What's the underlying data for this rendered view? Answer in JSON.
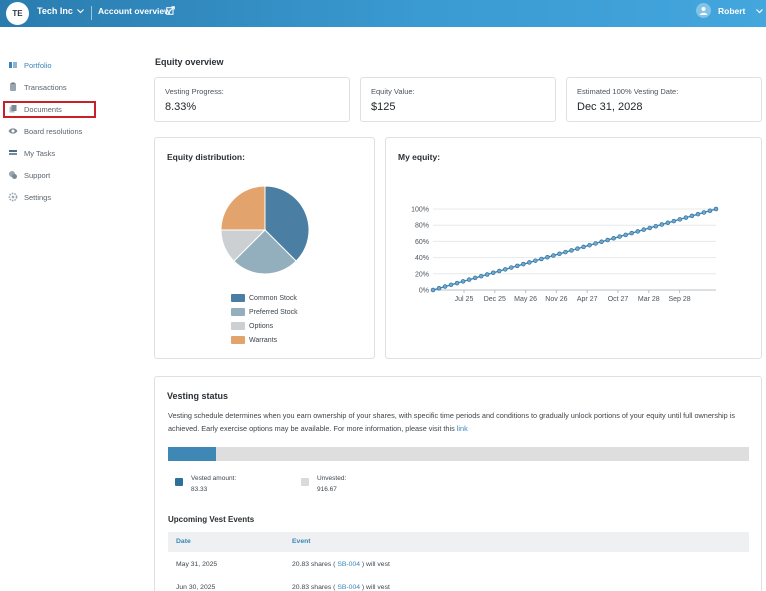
{
  "header": {
    "org_initials": "TE",
    "org_name": "Tech Inc",
    "account_link": "Account overview",
    "user_name": "Robert"
  },
  "sidebar": {
    "items": [
      {
        "label": "Portfolio",
        "icon": "portfolio-icon",
        "active": true
      },
      {
        "label": "Transactions",
        "icon": "clipboard-icon"
      },
      {
        "label": "Documents",
        "icon": "documents-icon"
      },
      {
        "label": "Board resolutions",
        "icon": "eye-icon"
      },
      {
        "label": "My Tasks",
        "icon": "tasks-icon"
      },
      {
        "label": "Support",
        "icon": "support-icon"
      },
      {
        "label": "Settings",
        "icon": "gear-icon"
      }
    ]
  },
  "overview": {
    "title": "Equity overview",
    "stats": [
      {
        "label": "Vesting Progress:",
        "value": "8.33%"
      },
      {
        "label": "Equity Value:",
        "value": "$125"
      },
      {
        "label": "Estimated 100% Vesting Date:",
        "value": "Dec 31, 2028"
      }
    ]
  },
  "distribution": {
    "title": "Equity distribution:",
    "legend": [
      "Common Stock",
      "Preferred Stock",
      "Options",
      "Warrants"
    ]
  },
  "my_equity": {
    "title": "My equity:"
  },
  "colors": {
    "common": "#4a7fa3",
    "preferred": "#93aebd",
    "options": "#cdd0d2",
    "warrants": "#e3a36c",
    "accent": "#3a86b8"
  },
  "chart_data": [
    {
      "type": "pie",
      "title": "Equity distribution:",
      "labels": [
        "Common Stock",
        "Preferred Stock",
        "Options",
        "Warrants"
      ],
      "values": [
        37.5,
        25,
        12.5,
        25
      ]
    },
    {
      "type": "line",
      "title": "My equity:",
      "x": [
        "Jul 25",
        "Dec 25",
        "May 26",
        "Nov 26",
        "Apr 27",
        "Oct 27",
        "Mar 28",
        "Sep 28"
      ],
      "y_ticks": [
        "0%",
        "20%",
        "40%",
        "60%",
        "80%",
        "100%"
      ],
      "ylim": [
        0,
        100
      ],
      "series": [
        {
          "points": 48,
          "start": 0,
          "end": 100
        }
      ]
    }
  ],
  "vesting": {
    "title": "Vesting status",
    "description": "Vesting schedule determines when you earn ownership of your shares, with specific time periods and conditions to gradually unlock portions of your equity until full ownership is achieved. Early exercise options may be available. For more information, please visit this",
    "link_text": "link",
    "progress_percent": 8.33,
    "vested_label": "Vested amount:",
    "vested_value": "83.33",
    "unvested_label": "Unvested:",
    "unvested_value": "916.67"
  },
  "events": {
    "title": "Upcoming Vest Events",
    "columns": [
      "Date",
      "Event"
    ],
    "rows": [
      {
        "date": "May 31, 2025",
        "shares": "20.83 shares (",
        "code": "SB-004",
        "suffix": ") will vest"
      },
      {
        "date": "Jun 30, 2025",
        "shares": "20.83 shares (",
        "code": "SB-004",
        "suffix": ") will vest"
      }
    ]
  }
}
